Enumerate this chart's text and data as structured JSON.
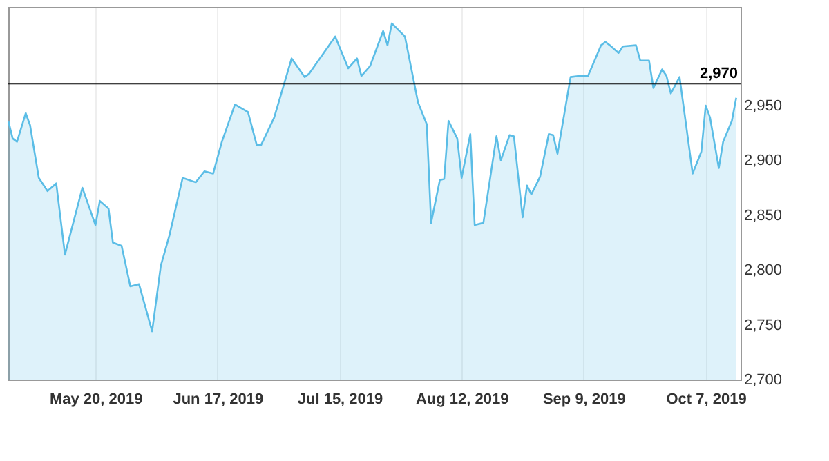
{
  "chart_data": {
    "type": "area",
    "x": [
      "2019-04-30",
      "2019-05-01",
      "2019-05-02",
      "2019-05-04",
      "2019-05-05",
      "2019-05-07",
      "2019-05-09",
      "2019-05-11",
      "2019-05-13",
      "2019-05-17",
      "2019-05-20",
      "2019-05-21",
      "2019-05-23",
      "2019-05-24",
      "2019-05-26",
      "2019-05-28",
      "2019-05-30",
      "2019-06-02",
      "2019-06-04",
      "2019-06-06",
      "2019-06-09",
      "2019-06-12",
      "2019-06-14",
      "2019-06-16",
      "2019-06-18",
      "2019-06-21",
      "2019-06-24",
      "2019-06-26",
      "2019-06-27",
      "2019-06-30",
      "2019-07-04",
      "2019-07-07",
      "2019-07-08",
      "2019-07-11",
      "2019-07-14",
      "2019-07-17",
      "2019-07-19",
      "2019-07-20",
      "2019-07-22",
      "2019-07-25",
      "2019-07-26",
      "2019-07-27",
      "2019-07-30",
      "2019-08-02",
      "2019-08-04",
      "2019-08-05",
      "2019-08-07",
      "2019-08-08",
      "2019-08-09",
      "2019-08-11",
      "2019-08-12",
      "2019-08-14",
      "2019-08-15",
      "2019-08-17",
      "2019-08-20",
      "2019-08-21",
      "2019-08-23",
      "2019-08-24",
      "2019-08-26",
      "2019-08-27",
      "2019-08-28",
      "2019-08-30",
      "2019-09-01",
      "2019-09-02",
      "2019-09-03",
      "2019-09-06",
      "2019-09-08",
      "2019-09-10",
      "2019-09-13",
      "2019-09-14",
      "2019-09-15",
      "2019-09-17",
      "2019-09-18",
      "2019-09-21",
      "2019-09-22",
      "2019-09-24",
      "2019-09-25",
      "2019-09-27",
      "2019-09-28",
      "2019-09-29",
      "2019-10-01",
      "2019-10-02",
      "2019-10-04",
      "2019-10-06",
      "2019-10-07",
      "2019-10-08",
      "2019-10-10",
      "2019-10-11",
      "2019-10-13",
      "2019-10-14"
    ],
    "series": [
      {
        "color": "#5bbde6",
        "values": [
          2936,
          2920,
          2917,
          2943,
          2932,
          2884,
          2872,
          2879,
          2814,
          2875,
          2841,
          2863,
          2856,
          2825,
          2822,
          2785,
          2787,
          2744,
          2804,
          2832,
          2884,
          2880,
          2890,
          2888,
          2917,
          2951,
          2944,
          2914,
          2914,
          2939,
          2993,
          2976,
          2979,
          2996,
          3013,
          2984,
          2993,
          2977,
          2986,
          3018,
          3005,
          3025,
          3013,
          2953,
          2933,
          2843,
          2882,
          2883,
          2936,
          2920,
          2884,
          2924,
          2841,
          2843,
          2922,
          2900,
          2923,
          2922,
          2848,
          2877,
          2869,
          2885,
          2924,
          2923,
          2906,
          2976,
          2977,
          2977,
          3005,
          3008,
          3005,
          2998,
          3004,
          3005,
          2991,
          2991,
          2966,
          2983,
          2977,
          2961,
          2976,
          2947,
          2888,
          2908,
          2950,
          2939,
          2893,
          2917,
          2936,
          2957
        ]
      }
    ],
    "xlim": [
      "2019-04-30",
      "2019-10-15"
    ],
    "xticks": [
      {
        "value": "2019-05-20",
        "label": "May 20, 2019"
      },
      {
        "value": "2019-06-17",
        "label": "Jun 17, 2019"
      },
      {
        "value": "2019-07-15",
        "label": "Jul 15, 2019"
      },
      {
        "value": "2019-08-12",
        "label": "Aug 12, 2019"
      },
      {
        "value": "2019-09-09",
        "label": "Sep 9, 2019"
      },
      {
        "value": "2019-10-07",
        "label": "Oct 7, 2019"
      }
    ],
    "ylim": [
      2700,
      3040
    ],
    "yticks": [
      {
        "value": 2700,
        "label": "2,700"
      },
      {
        "value": 2750,
        "label": "2,750"
      },
      {
        "value": 2800,
        "label": "2,800"
      },
      {
        "value": 2850,
        "label": "2,850"
      },
      {
        "value": 2900,
        "label": "2,900"
      },
      {
        "value": 2950,
        "label": "2,950"
      }
    ],
    "ref_lines": [
      {
        "axis": "y",
        "value": 2970,
        "label": "2,970",
        "color": "#000000"
      }
    ],
    "grid": "x"
  }
}
